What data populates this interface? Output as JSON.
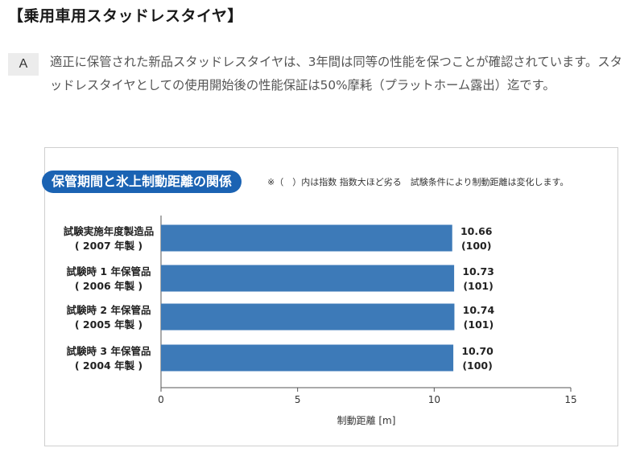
{
  "page": {
    "title": "【乗用車用スタッドレスタイヤ】",
    "answer_label": "A",
    "answer_text": "適正に保管された新品スタッドレスタイヤは、3年間は同等の性能を保つことが確認されています。スタッドレスタイヤとしての使用開始後の性能保証は50%摩耗（プラットホーム露出）迄です。"
  },
  "chart_data": {
    "type": "bar",
    "orientation": "horizontal",
    "title": "保管期間と氷上制動距離の関係",
    "note": "※（　）内は指数 指数大ほど劣る　試験条件により制動距離は変化します。",
    "categories": [
      [
        "試験実施年度製造品",
        "( 2007 年製 )"
      ],
      [
        "試験時 1 年保管品",
        "( 2006 年製 )"
      ],
      [
        "試験時 2 年保管品",
        "( 2005 年製 )"
      ],
      [
        "試験時 3 年保管品",
        "( 2004 年製 )"
      ]
    ],
    "values": [
      10.66,
      10.73,
      10.74,
      10.7
    ],
    "value_labels": [
      "10.66",
      "10.73",
      "10.74",
      "10.70"
    ],
    "index_labels": [
      "(100)",
      "(101)",
      "(101)",
      "(100)"
    ],
    "xlabel": "制動距離 [m]",
    "xlim": [
      0,
      15
    ],
    "xticks": [
      "0",
      "5",
      "10",
      "15"
    ],
    "bar_color": "#3d7ab8",
    "title_color": "#1b63b3",
    "grid": false
  }
}
